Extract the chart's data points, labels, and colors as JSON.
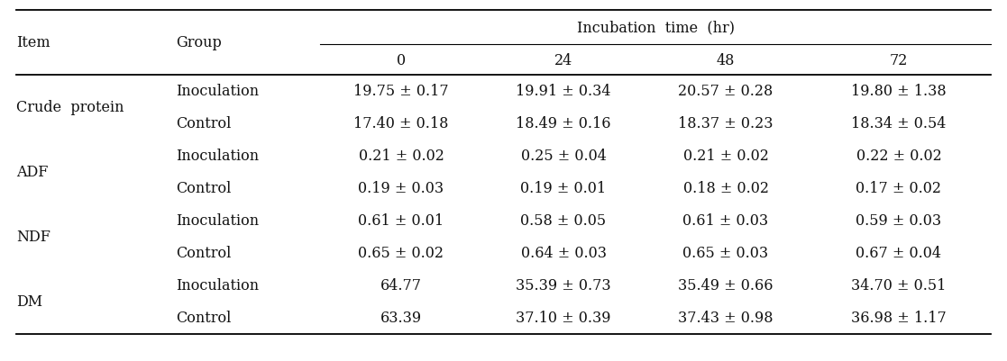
{
  "title": "Incubation  time  (hr)",
  "col_headers": [
    "0",
    "24",
    "48",
    "72"
  ],
  "row_labels_group": [
    "Inoculation",
    "Control",
    "Inoculation",
    "Control",
    "Inoculation",
    "Control",
    "Inoculation",
    "Control"
  ],
  "table_data": [
    [
      "19.75 ± 0.17",
      "19.91 ± 0.34",
      "20.57 ± 0.28",
      "19.80 ± 1.38"
    ],
    [
      "17.40 ± 0.18",
      "18.49 ± 0.16",
      "18.37 ± 0.23",
      "18.34 ± 0.54"
    ],
    [
      "0.21 ± 0.02",
      "0.25 ± 0.04",
      "0.21 ± 0.02",
      "0.22 ± 0.02"
    ],
    [
      "0.19 ± 0.03",
      "0.19 ± 0.01",
      "0.18 ± 0.02",
      "0.17 ± 0.02"
    ],
    [
      "0.61 ± 0.01",
      "0.58 ± 0.05",
      "0.61 ± 0.03",
      "0.59 ± 0.03"
    ],
    [
      "0.65 ± 0.02",
      "0.64 ± 0.03",
      "0.65 ± 0.03",
      "0.67 ± 0.04"
    ],
    [
      "64.77",
      "35.39 ± 0.73",
      "35.49 ± 0.66",
      "34.70 ± 0.51"
    ],
    [
      "63.39",
      "37.10 ± 0.39",
      "37.43 ± 0.98",
      "36.98 ± 1.17"
    ]
  ],
  "item_labels": [
    {
      "name": "Crude  protein",
      "rows": [
        0,
        1
      ]
    },
    {
      "name": "ADF",
      "rows": [
        2,
        3
      ]
    },
    {
      "name": "NDF",
      "rows": [
        4,
        5
      ]
    },
    {
      "name": "DM",
      "rows": [
        6,
        7
      ]
    }
  ],
  "bg_color": "#ffffff",
  "text_color": "#111111",
  "font_size": 11.5,
  "header_font_size": 11.5,
  "font_family": "DejaVu Serif"
}
